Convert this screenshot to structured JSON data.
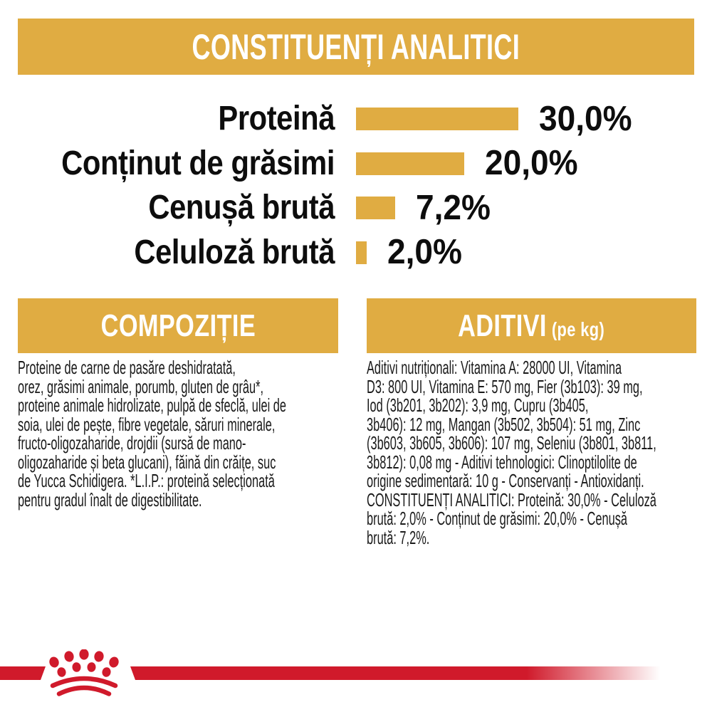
{
  "header": {
    "title": "CONSTITUENȚI ANALITICI"
  },
  "chart_data": {
    "type": "bar",
    "orientation": "horizontal",
    "title": "CONSTITUENȚI ANALITICI",
    "categories": [
      "Proteină",
      "Conținut de grăsimi",
      "Cenușă brută",
      "Celuloză brută"
    ],
    "values": [
      30.0,
      20.0,
      7.2,
      2.0
    ],
    "value_labels": [
      "30,0%",
      "20,0%",
      "7,2%",
      "2,0%"
    ],
    "unit": "%",
    "xlim": [
      0,
      30
    ],
    "grid": false,
    "legend": false,
    "bar_color": "#E0AC42"
  },
  "sections": {
    "composition": {
      "title": "COMPOZIȚIE",
      "body": "Proteine de carne de pasăre deshidratată,\norez, grăsimi animale, porumb, gluten de grâu*,\nproteine animale hidrolizate, pulpă de sfeclă, ulei de\nsoia, ulei de pește, fibre vegetale, săruri minerale,\nfructo-oligozaharide, drojdii (sursă de mano-\noligozaharide și beta glucani), făină din crăițe, suc\nde Yucca Schidigera. *L.I.P.: proteină selecționată\npentru gradul înalt de digestibilitate."
    },
    "additives": {
      "title": "ADITIVI",
      "title_suffix": "(pe kg)",
      "body": "Aditivi nutriționali: Vitamina A: 28000 UI, Vitamina\nD3: 800 UI, Vitamina E: 570 mg, Fier (3b103): 39 mg,\nIod (3b201, 3b202): 3,9 mg, Cupru (3b405,\n3b406): 12 mg, Mangan (3b502, 3b504): 51 mg, Zinc\n(3b603, 3b605, 3b606): 107 mg, Seleniu (3b801, 3b811,\n3b812): 0,08 mg - Aditivi tehnologici: Clinoptilolite de\norigine sedimentară: 10 g - Conservanți - Antioxidanți.\nCONSTITUENȚI ANALITICI: Proteină: 30,0% - Celuloză\nbrută: 2,0% - Conținut de grăsimi: 20,0% - Cenușă\nbrută: 7,2%."
    }
  },
  "footer": {
    "logo": "royal-canin-crown"
  },
  "colors": {
    "gold": "#E0AC42",
    "red": "#D01A2B",
    "text": "#1A1A1A",
    "background": "#FFFFFF"
  }
}
